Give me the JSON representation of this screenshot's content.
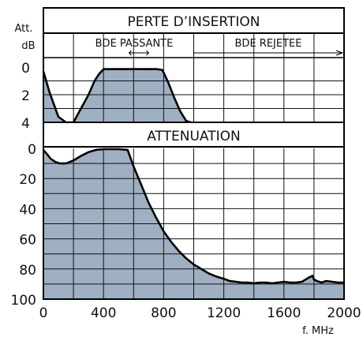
{
  "chart_data": [
    {
      "type": "area",
      "title": "PERTE D’INSERTION",
      "ylabel": "Att. dB",
      "ylabel_parts": [
        "Att.",
        "dB"
      ],
      "ylim": [
        4,
        0
      ],
      "yticks": [
        0,
        2,
        4
      ],
      "xlim": [
        0,
        2000
      ],
      "grid": true,
      "annotations": [
        "BDE PASSANTE",
        "BDE REJETEE"
      ],
      "fill_color": "#9fb0c2",
      "series": [
        {
          "x": [
            0,
            40,
            100,
            150,
            180,
            200,
            240,
            300,
            340,
            370,
            400,
            450,
            550,
            650,
            750,
            790,
            800,
            830,
            870,
            910,
            950,
            980
          ],
          "y": [
            0.3,
            1.8,
            3.6,
            4.0,
            4.0,
            4.0,
            3.2,
            2.0,
            1.0,
            0.5,
            0.15,
            0.15,
            0.15,
            0.15,
            0.15,
            0.2,
            0.4,
            1.1,
            2.2,
            3.2,
            3.9,
            4.0
          ]
        }
      ]
    },
    {
      "type": "area",
      "title": "ATTENUATION",
      "ylim": [
        100,
        0
      ],
      "yticks": [
        0,
        20,
        40,
        60,
        80,
        100
      ],
      "xlim": [
        0,
        2000
      ],
      "xticks": [
        0,
        400,
        800,
        1200,
        1600,
        2000
      ],
      "xlabel": "f. MHz",
      "grid": true,
      "fill_color": "#9fb0c2",
      "series": [
        {
          "x": [
            0,
            25,
            50,
            80,
            110,
            150,
            200,
            250,
            300,
            350,
            400,
            450,
            500,
            560,
            600,
            650,
            700,
            750,
            800,
            850,
            900,
            950,
            1000,
            1050,
            1100,
            1150,
            1200,
            1240,
            1280,
            1320,
            1360,
            1400,
            1440,
            1480,
            1520,
            1560,
            1600,
            1640,
            1680,
            1720,
            1760,
            1790,
            1800,
            1820,
            1850,
            1880,
            1920,
            1960,
            2000
          ],
          "y": [
            1,
            4,
            7,
            9,
            10,
            10,
            8,
            5,
            2.5,
            1,
            0.5,
            0.5,
            0.5,
            1,
            12,
            24,
            36,
            46,
            55,
            62,
            68,
            73,
            77,
            80,
            83,
            85,
            86.5,
            88,
            88.5,
            89,
            89,
            89.5,
            89,
            89,
            89.5,
            89,
            88.5,
            89,
            89,
            88.5,
            86,
            84.5,
            87,
            88,
            89,
            88,
            88.5,
            89,
            89
          ]
        }
      ]
    }
  ]
}
